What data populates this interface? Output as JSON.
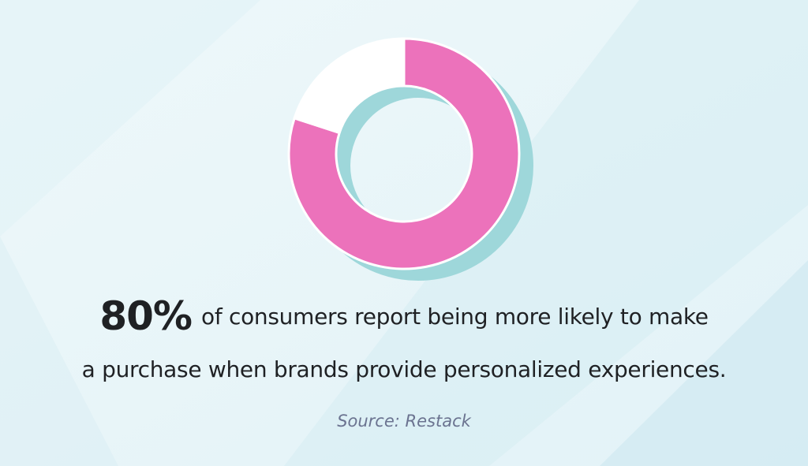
{
  "colors": {
    "background": "#e8f5f8",
    "highlight": "#ec72bb",
    "remainder": "#ffffff",
    "shadow": "#9ed7da",
    "text": "#1f2124",
    "source": "#6b7390"
  },
  "stat": {
    "value": "80%",
    "line1": "of consumers report being more likely to make",
    "line2": "a purchase when brands provide personalized experiences."
  },
  "source": "Source: Restack",
  "chart_data": {
    "type": "pie",
    "style": "donut",
    "values": [
      80,
      20
    ],
    "colors": [
      "#ec72bb",
      "#ffffff"
    ],
    "title": "",
    "legend": "none"
  }
}
